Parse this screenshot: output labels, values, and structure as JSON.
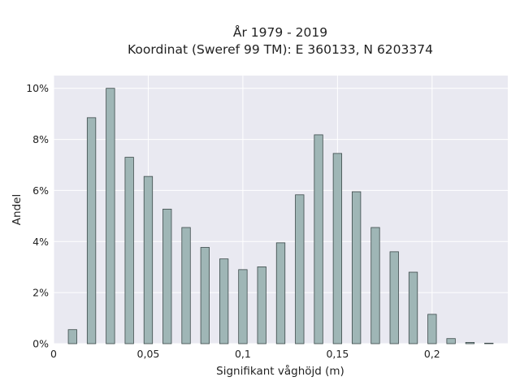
{
  "chart_data": {
    "type": "bar",
    "title": "År 1979 - 2019",
    "subtitle": "Koordinat (Sweref 99 TM): E 360133, N 6203374",
    "xlabel": "Signifikant våghöjd (m)",
    "ylabel": "Andel",
    "xlim": [
      0,
      0.24
    ],
    "ylim": [
      0,
      10.5
    ],
    "x_ticks": [
      0,
      0.05,
      0.1,
      0.15,
      0.2
    ],
    "x_tick_labels": [
      "0",
      "0,05",
      "0,1",
      "0,15",
      "0,2"
    ],
    "y_ticks": [
      0,
      2,
      4,
      6,
      8,
      10
    ],
    "y_tick_labels": [
      "0%",
      "2%",
      "4%",
      "6%",
      "8%",
      "10%"
    ],
    "grid": true,
    "colors": {
      "bar_fill": "#9fb6b6",
      "bar_edge": "#3c4a4a",
      "plot_bg": "#e9e9f1",
      "grid": "#ffffff"
    },
    "x": [
      0.01,
      0.02,
      0.03,
      0.04,
      0.05,
      0.06,
      0.07,
      0.08,
      0.09,
      0.1,
      0.11,
      0.12,
      0.13,
      0.14,
      0.15,
      0.16,
      0.17,
      0.18,
      0.19,
      0.2,
      0.21,
      0.22,
      0.23
    ],
    "values": [
      0.55,
      8.85,
      10.0,
      7.3,
      6.55,
      5.27,
      4.55,
      3.77,
      3.32,
      2.9,
      3.01,
      3.95,
      5.83,
      8.18,
      7.45,
      5.95,
      4.55,
      3.6,
      2.8,
      1.15,
      0.2,
      0.05,
      0.02
    ]
  }
}
